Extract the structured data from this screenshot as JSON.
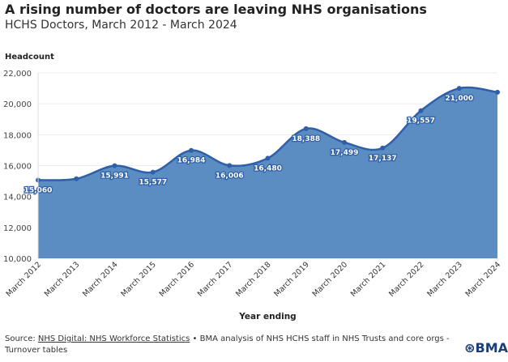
{
  "chart_data": {
    "type": "area",
    "title": "A rising number of doctors are leaving NHS organisations",
    "subtitle": "HCHS Doctors, March 2012 - March 2024",
    "ylabel": "Headcount",
    "xlabel": "Year ending",
    "categories": [
      "March 2012",
      "March 2013",
      "March 2014",
      "March 2015",
      "March 2016",
      "March 2017",
      "March 2018",
      "March 2019",
      "March 2020",
      "March 2021",
      "March 2022",
      "March 2023",
      "March 2024"
    ],
    "values": [
      15060,
      15150,
      15991,
      15577,
      16984,
      16006,
      16480,
      18388,
      17499,
      17137,
      19557,
      21000,
      20750
    ],
    "data_labels": [
      "15,060",
      "",
      "15,991",
      "15,577",
      "16,984",
      "16,006",
      "16,480",
      "18,388",
      "17,499",
      "17,137",
      "19,557",
      "21,000",
      ""
    ],
    "ylim": [
      10000,
      22000
    ],
    "yticks": [
      "10,000",
      "12,000",
      "14,000",
      "16,000",
      "18,000",
      "20,000",
      "22,000"
    ],
    "grid": true,
    "colors": {
      "fill": "#5b8dc2",
      "line": "#2f5fa6"
    }
  },
  "source": {
    "prefix": "Source: ",
    "link": "NHS Digital: NHS Workforce Statistics",
    "rest": " • BMA analysis of NHS HCHS staff in NHS Trusts and core orgs - Turnover tables"
  },
  "logo": "BMA"
}
